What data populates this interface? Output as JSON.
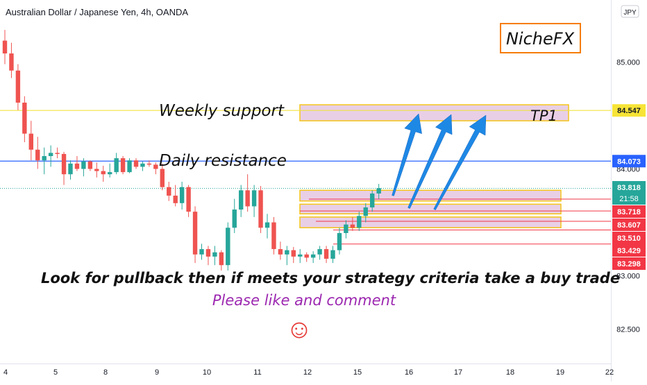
{
  "chart_data": {
    "type": "candlestick",
    "title": "Australian Dollar / Japanese Yen, 4h, OANDA",
    "currency_badge": "JPY",
    "ylim": [
      82.18,
      85.58
    ],
    "y_ticks": [
      {
        "value": 85.0,
        "label": "85.000"
      },
      {
        "value": 84.0,
        "label": "84.000"
      },
      {
        "value": 83.0,
        "label": "83.000"
      },
      {
        "value": 82.5,
        "label": "82.500"
      }
    ],
    "x_ticks": [
      "4",
      "5",
      "8",
      "9",
      "10",
      "11",
      "12",
      "15",
      "16",
      "17",
      "18",
      "19",
      "22"
    ],
    "colors": {
      "up": "#26a69a",
      "down": "#ef5350",
      "support_line": "#f0e442",
      "resistance_line": "#2962ff",
      "level_line": "#f23645",
      "zone_fill": "#e9cfe6",
      "zone_border": "#f5c518",
      "arrow": "#1e88e5",
      "brand_border": "#f57c00",
      "subtext": "#9c27b0",
      "smiley": "#e53935"
    },
    "candles": [
      {
        "o": 85.2,
        "h": 85.3,
        "l": 84.98,
        "c": 85.08
      },
      {
        "o": 85.08,
        "h": 85.18,
        "l": 84.85,
        "c": 84.92
      },
      {
        "o": 84.92,
        "h": 84.98,
        "l": 84.55,
        "c": 84.62
      },
      {
        "o": 84.62,
        "h": 84.68,
        "l": 84.25,
        "c": 84.33
      },
      {
        "o": 84.33,
        "h": 84.45,
        "l": 84.08,
        "c": 84.18
      },
      {
        "o": 84.18,
        "h": 84.3,
        "l": 84.0,
        "c": 84.08
      },
      {
        "o": 84.08,
        "h": 84.2,
        "l": 83.95,
        "c": 84.12
      },
      {
        "o": 84.12,
        "h": 84.22,
        "l": 84.02,
        "c": 84.15
      },
      {
        "o": 84.15,
        "h": 84.2,
        "l": 84.1,
        "c": 84.14
      },
      {
        "o": 84.14,
        "h": 84.16,
        "l": 83.85,
        "c": 83.95
      },
      {
        "o": 83.95,
        "h": 84.08,
        "l": 83.9,
        "c": 84.05
      },
      {
        "o": 84.05,
        "h": 84.12,
        "l": 83.98,
        "c": 84.0
      },
      {
        "o": 84.0,
        "h": 84.1,
        "l": 83.93,
        "c": 84.07
      },
      {
        "o": 84.07,
        "h": 84.08,
        "l": 83.98,
        "c": 84.0
      },
      {
        "o": 84.0,
        "h": 84.06,
        "l": 83.92,
        "c": 83.98
      },
      {
        "o": 83.98,
        "h": 84.03,
        "l": 83.88,
        "c": 83.95
      },
      {
        "o": 83.95,
        "h": 84.05,
        "l": 83.92,
        "c": 83.97
      },
      {
        "o": 83.97,
        "h": 84.15,
        "l": 83.95,
        "c": 84.1
      },
      {
        "o": 84.1,
        "h": 84.12,
        "l": 83.95,
        "c": 83.97
      },
      {
        "o": 83.97,
        "h": 84.1,
        "l": 83.96,
        "c": 84.08
      },
      {
        "o": 84.08,
        "h": 84.1,
        "l": 84.0,
        "c": 84.02
      },
      {
        "o": 84.02,
        "h": 84.07,
        "l": 83.98,
        "c": 84.05
      },
      {
        "o": 84.05,
        "h": 84.08,
        "l": 84.02,
        "c": 84.04
      },
      {
        "o": 84.04,
        "h": 84.06,
        "l": 83.95,
        "c": 84.0
      },
      {
        "o": 84.0,
        "h": 84.05,
        "l": 83.8,
        "c": 83.83
      },
      {
        "o": 83.83,
        "h": 83.88,
        "l": 83.7,
        "c": 83.75
      },
      {
        "o": 83.75,
        "h": 83.85,
        "l": 83.65,
        "c": 83.68
      },
      {
        "o": 83.68,
        "h": 83.88,
        "l": 83.62,
        "c": 83.83
      },
      {
        "o": 83.83,
        "h": 83.85,
        "l": 83.55,
        "c": 83.6
      },
      {
        "o": 83.6,
        "h": 83.65,
        "l": 83.12,
        "c": 83.2
      },
      {
        "o": 83.2,
        "h": 83.3,
        "l": 83.15,
        "c": 83.25
      },
      {
        "o": 83.25,
        "h": 83.28,
        "l": 83.1,
        "c": 83.18
      },
      {
        "o": 83.18,
        "h": 83.28,
        "l": 83.1,
        "c": 83.22
      },
      {
        "o": 83.22,
        "h": 83.24,
        "l": 83.05,
        "c": 83.1
      },
      {
        "o": 83.1,
        "h": 83.5,
        "l": 83.05,
        "c": 83.45
      },
      {
        "o": 83.45,
        "h": 83.72,
        "l": 83.4,
        "c": 83.62
      },
      {
        "o": 83.62,
        "h": 83.85,
        "l": 83.55,
        "c": 83.8
      },
      {
        "o": 83.8,
        "h": 83.95,
        "l": 83.6,
        "c": 83.65
      },
      {
        "o": 83.65,
        "h": 83.85,
        "l": 83.55,
        "c": 83.8
      },
      {
        "o": 83.8,
        "h": 83.84,
        "l": 83.4,
        "c": 83.45
      },
      {
        "o": 83.45,
        "h": 83.58,
        "l": 83.35,
        "c": 83.5
      },
      {
        "o": 83.5,
        "h": 83.55,
        "l": 83.2,
        "c": 83.25
      },
      {
        "o": 83.25,
        "h": 83.32,
        "l": 83.15,
        "c": 83.2
      },
      {
        "o": 83.2,
        "h": 83.28,
        "l": 83.1,
        "c": 83.24
      },
      {
        "o": 83.24,
        "h": 83.27,
        "l": 83.12,
        "c": 83.18
      },
      {
        "o": 83.18,
        "h": 83.25,
        "l": 83.12,
        "c": 83.2
      },
      {
        "o": 83.2,
        "h": 83.22,
        "l": 83.13,
        "c": 83.17
      },
      {
        "o": 83.17,
        "h": 83.23,
        "l": 83.12,
        "c": 83.2
      },
      {
        "o": 83.2,
        "h": 83.28,
        "l": 83.15,
        "c": 83.25
      },
      {
        "o": 83.25,
        "h": 83.28,
        "l": 83.12,
        "c": 83.16
      },
      {
        "o": 83.16,
        "h": 83.28,
        "l": 83.12,
        "c": 83.24
      },
      {
        "o": 83.24,
        "h": 83.45,
        "l": 83.2,
        "c": 83.4
      },
      {
        "o": 83.4,
        "h": 83.52,
        "l": 83.35,
        "c": 83.48
      },
      {
        "o": 83.48,
        "h": 83.55,
        "l": 83.42,
        "c": 83.45
      },
      {
        "o": 83.45,
        "h": 83.6,
        "l": 83.42,
        "c": 83.56
      },
      {
        "o": 83.56,
        "h": 83.68,
        "l": 83.5,
        "c": 83.64
      },
      {
        "o": 83.64,
        "h": 83.8,
        "l": 83.6,
        "c": 83.77
      },
      {
        "o": 83.77,
        "h": 83.86,
        "l": 83.72,
        "c": 83.82
      }
    ],
    "levels": {
      "weekly_support": {
        "value": 84.547,
        "label": "84.547"
      },
      "daily_resistance": {
        "value": 84.073,
        "label": "84.073"
      },
      "current_price": {
        "value": 83.818,
        "label": "83.818",
        "countdown": "21:58"
      },
      "red_levels": [
        {
          "value": 83.718,
          "label": "83.718"
        },
        {
          "value": 83.607,
          "label": "83.607"
        },
        {
          "value": 83.51,
          "label": "83.510"
        },
        {
          "value": 83.429,
          "label": "83.429"
        },
        {
          "value": 83.298,
          "label": "83.298"
        }
      ]
    },
    "tp_zone": {
      "top": 84.6,
      "bottom": 84.45
    },
    "entry_zones": [
      {
        "top": 83.8,
        "bottom": 83.7
      },
      {
        "top": 83.67,
        "bottom": 83.58
      },
      {
        "top": 83.55,
        "bottom": 83.45
      }
    ]
  },
  "annotations": {
    "brand": "NicheFX",
    "weekly_support": "Weekly support",
    "daily_resistance": "Daily resistance",
    "tp1": "TP1",
    "main_note": "Look for pullback then if meets your strategy criteria take a buy trade",
    "sub_note": "Please like and comment",
    "smiley": "☺"
  }
}
